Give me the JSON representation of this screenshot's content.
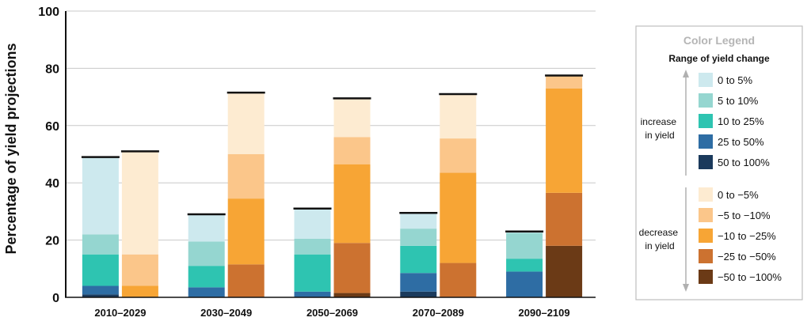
{
  "chart_data": {
    "type": "bar",
    "subtype": "paired-stacked",
    "ylabel": "Percentage of yield projections",
    "ylim": [
      0,
      100
    ],
    "yticks": [
      0,
      20,
      40,
      60,
      80,
      100
    ],
    "grid": true,
    "categories": [
      "2010–2029",
      "2030–2049",
      "2050–2069",
      "2070–2089",
      "2090–2109"
    ],
    "increase_series": [
      {
        "name": "50 to 100%",
        "color": "#1b3a5c",
        "values": [
          1,
          0,
          0,
          2,
          0
        ]
      },
      {
        "name": "25 to 50%",
        "color": "#2e6da4",
        "values": [
          3,
          3.5,
          2,
          6.5,
          9
        ]
      },
      {
        "name": "10 to 25%",
        "color": "#2ec4b1",
        "values": [
          11,
          7.5,
          13,
          9.5,
          4.5
        ]
      },
      {
        "name": "5 to 10%",
        "color": "#95d6d0",
        "values": [
          7,
          8.5,
          5.5,
          6,
          9
        ]
      },
      {
        "name": "0 to 5%",
        "color": "#cde9ee",
        "values": [
          27,
          9.5,
          10.5,
          5.5,
          0.5
        ]
      }
    ],
    "decrease_series": [
      {
        "name": "−50 to −100%",
        "color": "#6b3a16",
        "values": [
          0,
          0,
          1.5,
          0,
          18
        ]
      },
      {
        "name": "−25 to −50%",
        "color": "#cc7230",
        "values": [
          0,
          11.5,
          17.5,
          12,
          18.5
        ]
      },
      {
        "name": "−10 to −25%",
        "color": "#f7a535",
        "values": [
          4,
          23,
          27.5,
          31.5,
          36.5
        ]
      },
      {
        "name": "−5 to −10%",
        "color": "#fbc68a",
        "values": [
          11,
          15.5,
          9.5,
          12,
          4.5
        ]
      },
      {
        "name": "0 to −5%",
        "color": "#fdebd1",
        "values": [
          36,
          21.5,
          13.5,
          15.5,
          0
        ]
      }
    ],
    "increase_totals": [
      49,
      29,
      31,
      29.5,
      23
    ],
    "decrease_totals": [
      51,
      71.5,
      69.5,
      71,
      77.5
    ],
    "legend": {
      "title": "Color Legend",
      "subtitle": "Range of yield change",
      "increase_label": [
        "increase",
        "in yield"
      ],
      "decrease_label": [
        "decrease",
        "in yield"
      ],
      "placement": "right"
    }
  }
}
